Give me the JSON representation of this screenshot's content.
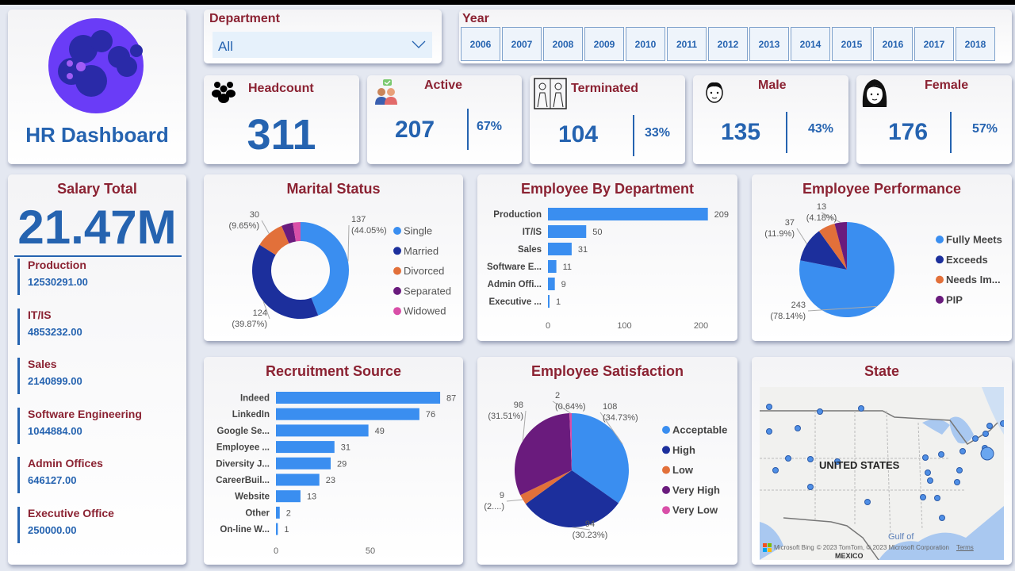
{
  "app": {
    "title": "HR Dashboard"
  },
  "department_slicer": {
    "label": "Department",
    "value": "All"
  },
  "year_slicer": {
    "label": "Year",
    "years": [
      "2006",
      "2007",
      "2008",
      "2009",
      "2010",
      "2011",
      "2012",
      "2013",
      "2014",
      "2015",
      "2016",
      "2017",
      "2018"
    ]
  },
  "kpis": {
    "headcount": {
      "label": "Headcount",
      "value": "311",
      "icon": "people-group-icon"
    },
    "active": {
      "label": "Active",
      "value": "207",
      "pct": "67%",
      "icon": "active-users-icon"
    },
    "terminated": {
      "label": "Terminated",
      "value": "104",
      "pct": "33%",
      "icon": "terminated-icon"
    },
    "male": {
      "label": "Male",
      "value": "135",
      "pct": "43%",
      "icon": "male-face-icon"
    },
    "female": {
      "label": "Female",
      "value": "176",
      "pct": "57%",
      "icon": "female-face-icon"
    }
  },
  "salary": {
    "title": "Salary Total",
    "total": "21.47M",
    "items": [
      {
        "name": "Production",
        "value": "12530291.00"
      },
      {
        "name": "IT/IS",
        "value": "4853232.00"
      },
      {
        "name": "Sales",
        "value": "2140899.00"
      },
      {
        "name": "Software Engineering",
        "value": "1044884.00"
      },
      {
        "name": "Admin Offices",
        "value": "646127.00"
      },
      {
        "name": "Executive Office",
        "value": "250000.00"
      }
    ]
  },
  "map": {
    "title": "State",
    "country_label": "UNITED STATES",
    "labels": [
      "Gulf of",
      "MEXICO"
    ],
    "attribution": "Microsoft Bing",
    "copyright": "© 2023 TomTom, © 2023 Microsoft Corporation",
    "terms": "Terms"
  },
  "colors": {
    "title": "#8b2232",
    "accent": "#2563b0",
    "bar": "#3a8ef0"
  },
  "chart_data": [
    {
      "id": "marital",
      "type": "pie",
      "donut": true,
      "title": "Marital Status",
      "categories": [
        "Single",
        "Married",
        "Divorced",
        "Separated",
        "Widowed"
      ],
      "values": [
        137,
        124,
        30,
        12,
        8
      ],
      "data_labels": [
        {
          "i": 0,
          "text": "137",
          "sub": "(44.05%)"
        },
        {
          "i": 1,
          "text": "124",
          "sub": "(39.87%)"
        },
        {
          "i": 2,
          "text": "30",
          "sub": "(9.65%)"
        }
      ],
      "colors": [
        "#3a8ef0",
        "#1c2f9c",
        "#e2703a",
        "#6a1b7d",
        "#d94fa8"
      ],
      "legend": "right"
    },
    {
      "id": "dept",
      "type": "bar",
      "orientation": "horizontal",
      "title": "Employee By Department",
      "categories": [
        "Production",
        "IT/IS",
        "Sales",
        "Software E...",
        "Admin Offi...",
        "Executive ..."
      ],
      "values": [
        209,
        50,
        31,
        11,
        9,
        1
      ],
      "xticks": [
        0,
        100,
        200
      ],
      "xlim": [
        0,
        215
      ]
    },
    {
      "id": "perf",
      "type": "pie",
      "title": "Employee Performance",
      "categories": [
        "Fully Meets",
        "Exceeds",
        "Needs Im...",
        "PIP"
      ],
      "values": [
        243,
        37,
        18,
        13
      ],
      "data_labels": [
        {
          "i": 0,
          "text": "243",
          "sub": "(78.14%)"
        },
        {
          "i": 1,
          "text": "37",
          "sub": "(11.9%)"
        },
        {
          "i": 3,
          "text": "13",
          "sub": "(4.18%)"
        }
      ],
      "colors": [
        "#3a8ef0",
        "#1c2f9c",
        "#e2703a",
        "#6a1b7d"
      ],
      "legend": "right"
    },
    {
      "id": "recruit",
      "type": "bar",
      "orientation": "horizontal",
      "title": "Recruitment Source",
      "categories": [
        "Indeed",
        "LinkedIn",
        "Google Se...",
        "Employee ...",
        "Diversity J...",
        "CareerBuil...",
        "Website",
        "Other",
        "On-line W..."
      ],
      "values": [
        87,
        76,
        49,
        31,
        29,
        23,
        13,
        2,
        1
      ],
      "xticks": [
        0,
        50
      ],
      "xlim": [
        0,
        87
      ]
    },
    {
      "id": "satis",
      "type": "pie",
      "title": "Employee Satisfaction",
      "categories": [
        "Acceptable",
        "High",
        "Low",
        "Very High",
        "Very Low"
      ],
      "values": [
        108,
        94,
        9,
        98,
        2
      ],
      "data_labels": [
        {
          "i": 0,
          "text": "108",
          "sub": "(34.73%)"
        },
        {
          "i": 1,
          "text": "94",
          "sub": "(30.23%)"
        },
        {
          "i": 2,
          "text": "9",
          "sub": "(2....)"
        },
        {
          "i": 3,
          "text": "98",
          "sub": "(31.51%)"
        },
        {
          "i": 4,
          "text": "2",
          "sub": "(0.64%)"
        }
      ],
      "colors": [
        "#3a8ef0",
        "#1c2f9c",
        "#e2703a",
        "#6a1b7d",
        "#d94fa8"
      ],
      "legend": "right"
    }
  ]
}
